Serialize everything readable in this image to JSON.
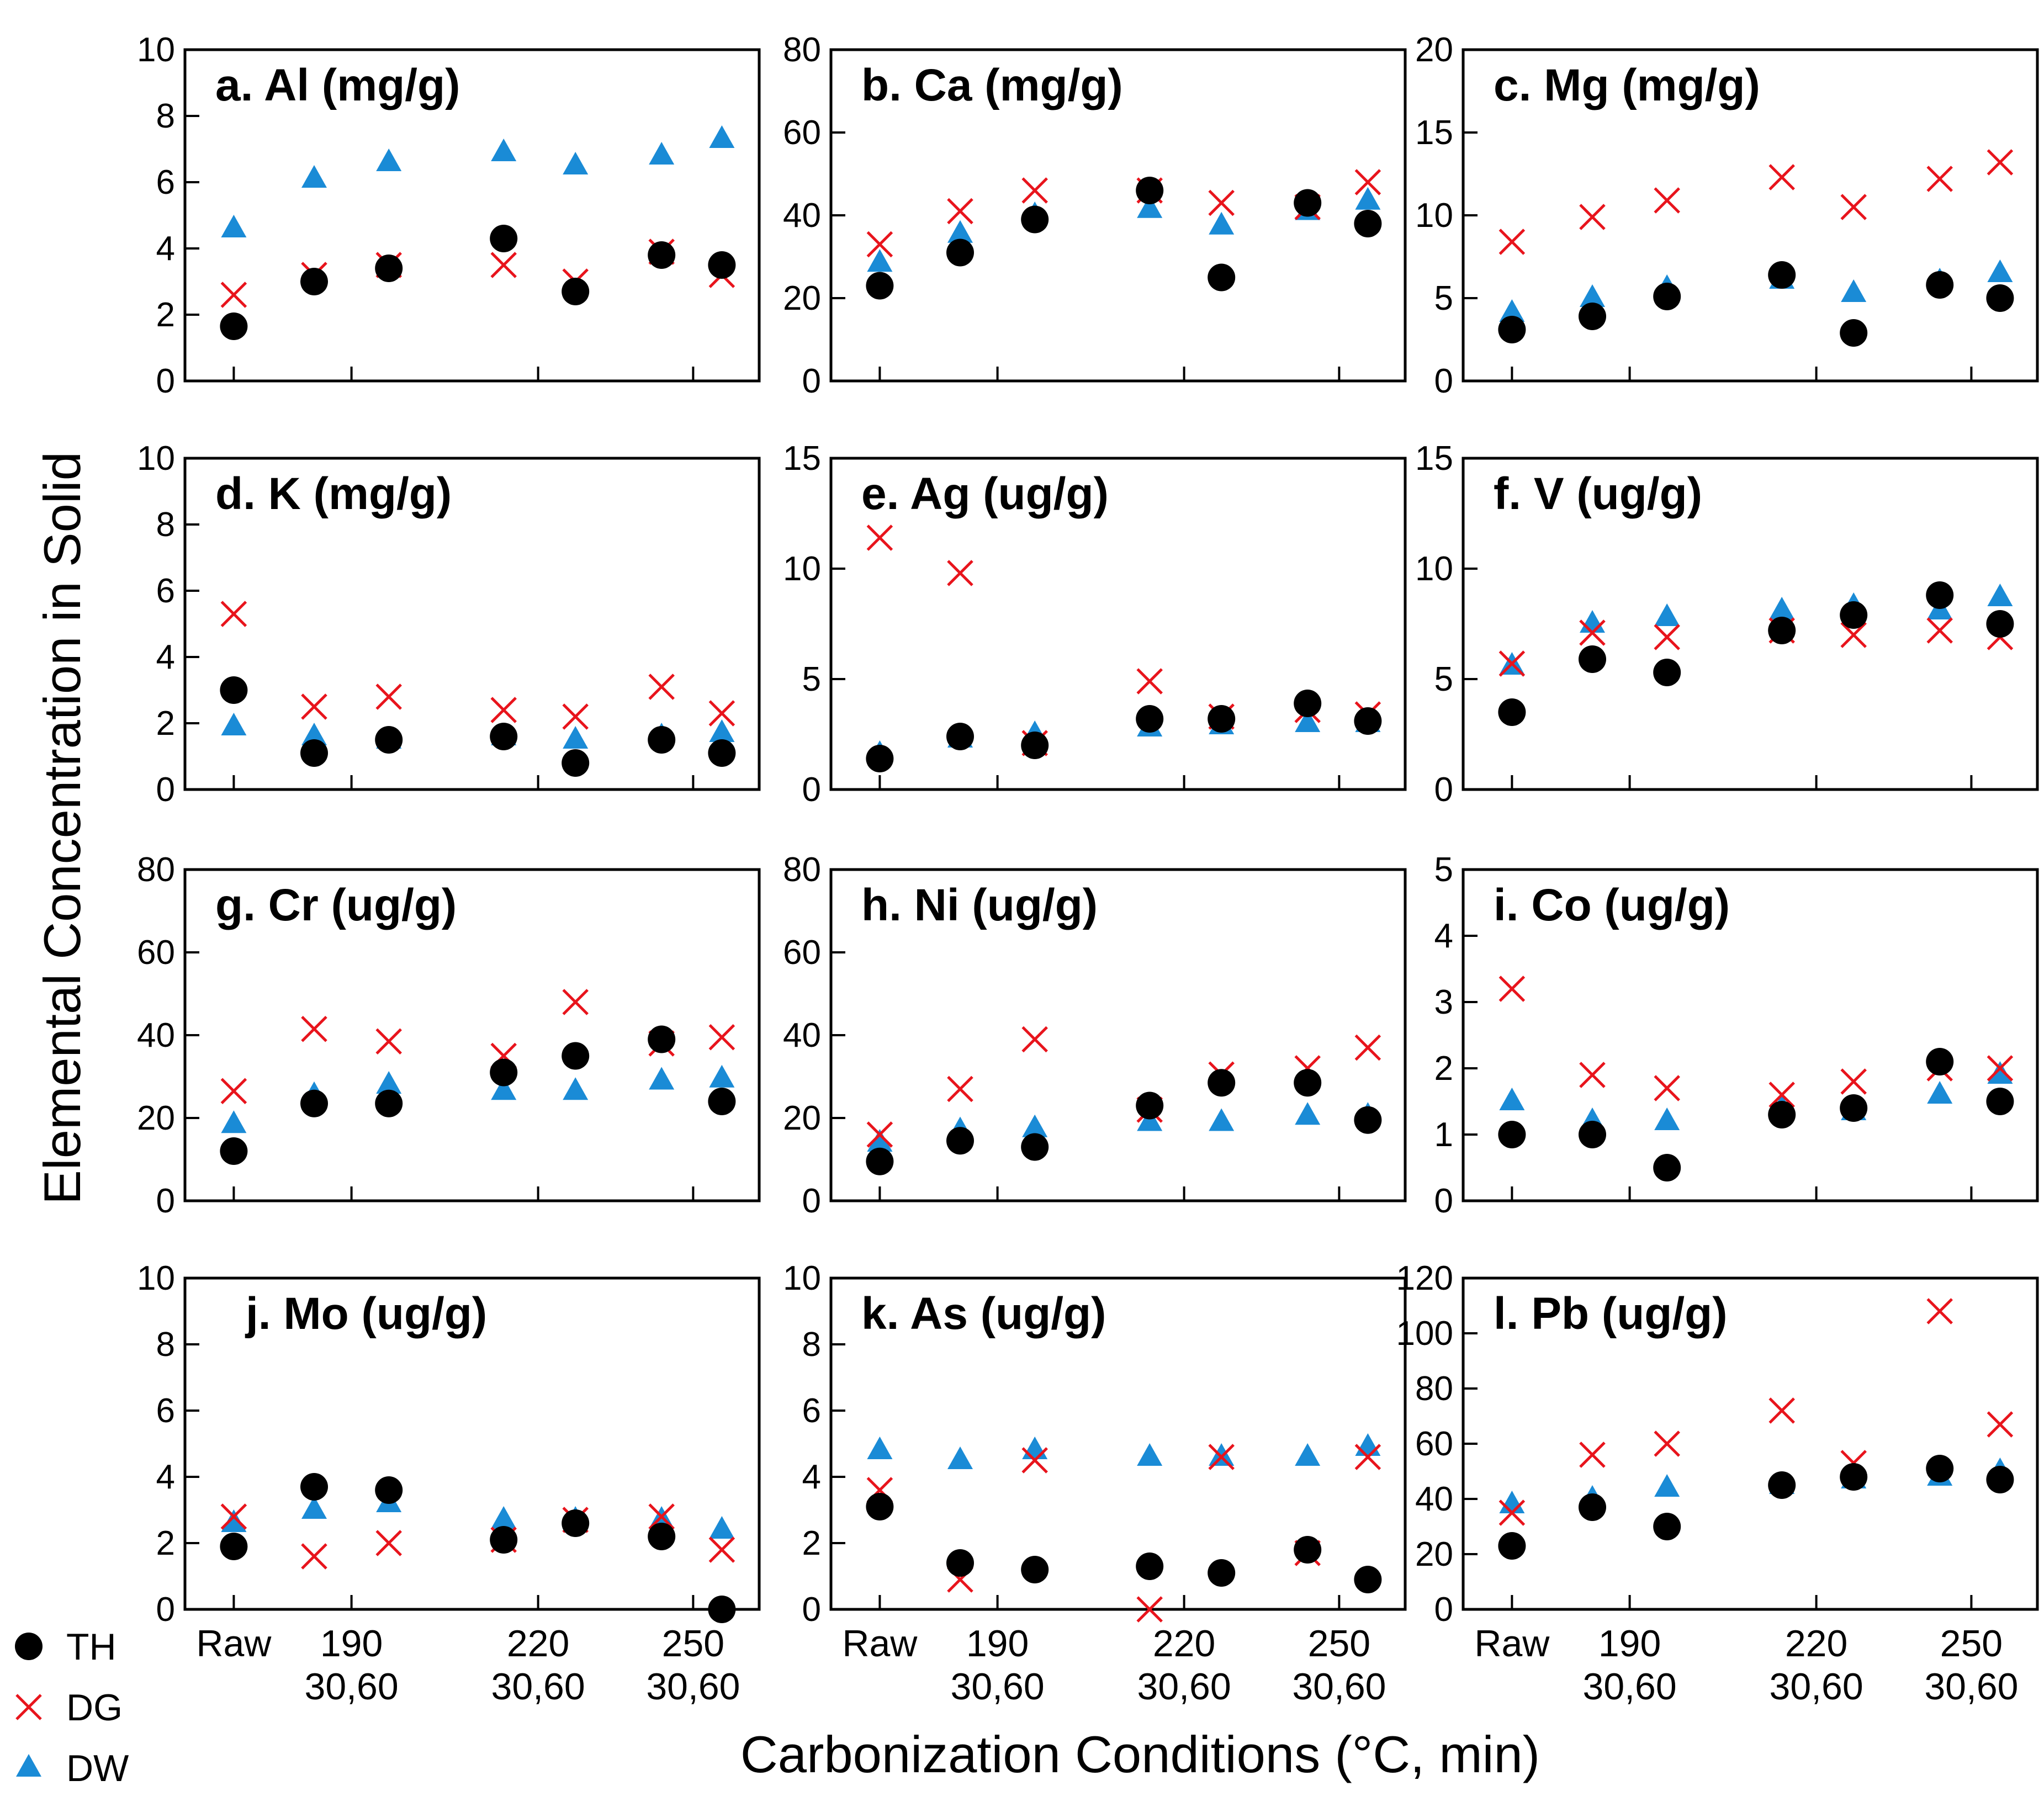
{
  "figure": {
    "ylabel": "Elemental Concentration in Solid",
    "xlabel": "Carbonization Conditions (°C, min)",
    "colors": {
      "TH": "#000000",
      "DG": "#e8141c",
      "DW": "#1a8bd6"
    }
  },
  "legend": [
    {
      "series": "TH",
      "label": "TH"
    },
    {
      "series": "DG",
      "label": "DG"
    },
    {
      "series": "DW",
      "label": "DW"
    }
  ],
  "xaxis": {
    "categories": [
      {
        "line1": "Raw",
        "line2": ""
      },
      {
        "line1": "190",
        "line2": "30,60"
      },
      {
        "line1": "220",
        "line2": "30,60"
      },
      {
        "line1": "250",
        "line2": "30,60"
      }
    ]
  },
  "chart_data": [
    {
      "type": "scatter",
      "title": "a. Al (mg/g)",
      "ylim": [
        0,
        10
      ],
      "yticks": [
        0,
        2,
        4,
        6,
        8,
        10
      ],
      "series": [
        {
          "name": "TH",
          "values": [
            1.65,
            3.0,
            3.4,
            4.3,
            2.7,
            3.8,
            3.5
          ]
        },
        {
          "name": "DG",
          "values": [
            2.6,
            3.2,
            3.5,
            3.5,
            3.0,
            3.9,
            3.2
          ]
        },
        {
          "name": "DW",
          "values": [
            4.6,
            6.1,
            6.6,
            6.9,
            6.5,
            6.8,
            7.3
          ]
        }
      ]
    },
    {
      "type": "scatter",
      "title": "b. Ca (mg/g)",
      "ylim": [
        0,
        80
      ],
      "yticks": [
        0,
        20,
        40,
        60,
        80
      ],
      "series": [
        {
          "name": "TH",
          "values": [
            23,
            31,
            39,
            46,
            25,
            43,
            38
          ]
        },
        {
          "name": "DG",
          "values": [
            33,
            41,
            46,
            46,
            43,
            42,
            48
          ]
        },
        {
          "name": "DW",
          "values": [
            28.5,
            35.5,
            40,
            41.5,
            37.5,
            41,
            43.5
          ]
        }
      ]
    },
    {
      "type": "scatter",
      "title": "c. Mg (mg/g)",
      "ylim": [
        0,
        20
      ],
      "yticks": [
        0,
        5,
        10,
        15,
        20
      ],
      "series": [
        {
          "name": "TH",
          "values": [
            3.1,
            3.9,
            5.1,
            6.4,
            2.9,
            5.8,
            5.0
          ]
        },
        {
          "name": "DG",
          "values": [
            8.4,
            9.9,
            10.9,
            12.3,
            10.5,
            12.2,
            13.2
          ]
        },
        {
          "name": "DW",
          "values": [
            4.1,
            5.0,
            5.6,
            6.1,
            5.3,
            6.0,
            6.5
          ]
        }
      ]
    },
    {
      "type": "scatter",
      "title": "d. K (mg/g)",
      "ylim": [
        0,
        10
      ],
      "yticks": [
        0,
        2,
        4,
        6,
        8,
        10
      ],
      "series": [
        {
          "name": "TH",
          "values": [
            3.0,
            1.1,
            1.5,
            1.6,
            0.8,
            1.5,
            1.1
          ]
        },
        {
          "name": "DG",
          "values": [
            5.3,
            2.5,
            2.8,
            2.4,
            2.2,
            3.1,
            2.3
          ]
        },
        {
          "name": "DW",
          "values": [
            1.9,
            1.6,
            1.5,
            1.6,
            1.5,
            1.6,
            1.7
          ]
        }
      ]
    },
    {
      "type": "scatter",
      "title": "e. Ag (ug/g)",
      "ylim": [
        0,
        15
      ],
      "yticks": [
        0,
        5,
        10,
        15
      ],
      "series": [
        {
          "name": "TH",
          "values": [
            1.4,
            2.4,
            2.0,
            3.2,
            3.2,
            3.9,
            3.1
          ]
        },
        {
          "name": "DG",
          "values": [
            11.4,
            9.8,
            2.1,
            4.9,
            3.3,
            3.6,
            3.4
          ]
        },
        {
          "name": "DW",
          "values": [
            1.6,
            2.3,
            2.5,
            2.8,
            2.9,
            3.0,
            3.0
          ]
        }
      ]
    },
    {
      "type": "scatter",
      "title": "f. V (ug/g)",
      "ylim": [
        0,
        15
      ],
      "yticks": [
        0,
        5,
        10,
        15
      ],
      "series": [
        {
          "name": "TH",
          "values": [
            3.5,
            5.9,
            5.3,
            7.2,
            7.9,
            8.8,
            7.5
          ]
        },
        {
          "name": "DG",
          "values": [
            5.7,
            7.1,
            6.9,
            7.2,
            7.0,
            7.2,
            6.9
          ]
        },
        {
          "name": "DW",
          "values": [
            5.6,
            7.5,
            7.8,
            8.1,
            8.3,
            8.1,
            8.7
          ]
        }
      ]
    },
    {
      "type": "scatter",
      "title": "g. Cr (ug/g)",
      "ylim": [
        0,
        80
      ],
      "yticks": [
        0,
        20,
        40,
        60,
        80
      ],
      "series": [
        {
          "name": "TH",
          "values": [
            12,
            23.5,
            23.5,
            31,
            35,
            39,
            24
          ]
        },
        {
          "name": "DG",
          "values": [
            26.5,
            41.5,
            38.5,
            35,
            48,
            38,
            39.5
          ]
        },
        {
          "name": "DW",
          "values": [
            18.5,
            25.5,
            28,
            26.5,
            26.5,
            29,
            29.5
          ]
        }
      ]
    },
    {
      "type": "scatter",
      "title": "h. Ni (ug/g)",
      "ylim": [
        0,
        80
      ],
      "yticks": [
        0,
        20,
        40,
        60,
        80
      ],
      "series": [
        {
          "name": "TH",
          "values": [
            9.5,
            14.5,
            13,
            23,
            28.5,
            28.5,
            19.5
          ]
        },
        {
          "name": "DG",
          "values": [
            16,
            27,
            39,
            22,
            30.5,
            32,
            37
          ]
        },
        {
          "name": "DW",
          "values": [
            14,
            17,
            17.5,
            19,
            19,
            20.5,
            20.5
          ]
        }
      ]
    },
    {
      "type": "scatter",
      "title": "i. Co (ug/g)",
      "ylim": [
        0,
        5
      ],
      "yticks": [
        0,
        1,
        2,
        3,
        4,
        5
      ],
      "series": [
        {
          "name": "TH",
          "values": [
            1.0,
            1.0,
            0.5,
            1.3,
            1.4,
            2.1,
            1.5
          ]
        },
        {
          "name": "DG",
          "values": [
            3.2,
            1.9,
            1.7,
            1.6,
            1.8,
            2.0,
            2.0
          ]
        },
        {
          "name": "DW",
          "values": [
            1.5,
            1.2,
            1.2,
            1.4,
            1.35,
            1.6,
            1.9
          ]
        }
      ]
    },
    {
      "type": "scatter",
      "title": "j. Mo (ug/g)",
      "ylim": [
        0,
        10
      ],
      "yticks": [
        0,
        2,
        4,
        6,
        8,
        10
      ],
      "series": [
        {
          "name": "TH",
          "values": [
            1.9,
            3.7,
            3.6,
            2.1,
            2.6,
            2.2,
            0.0
          ]
        },
        {
          "name": "DG",
          "values": [
            2.8,
            1.6,
            2.0,
            2.1,
            2.7,
            2.8,
            1.8
          ]
        },
        {
          "name": "DW",
          "values": [
            2.6,
            3.0,
            3.2,
            2.7,
            2.7,
            2.7,
            2.4
          ]
        }
      ]
    },
    {
      "type": "scatter",
      "title": "k. As (ug/g)",
      "ylim": [
        0,
        10
      ],
      "yticks": [
        0,
        2,
        4,
        6,
        8,
        10
      ],
      "series": [
        {
          "name": "TH",
          "values": [
            3.1,
            1.4,
            1.2,
            1.3,
            1.1,
            1.8,
            0.9
          ]
        },
        {
          "name": "DG",
          "values": [
            3.6,
            0.9,
            4.5,
            0.0,
            4.6,
            1.7,
            4.6
          ]
        },
        {
          "name": "DW",
          "values": [
            4.8,
            4.5,
            4.8,
            4.6,
            4.6,
            4.6,
            4.9
          ]
        }
      ]
    },
    {
      "type": "scatter",
      "title": "l. Pb (ug/g)",
      "ylim": [
        0,
        120
      ],
      "yticks": [
        0,
        20,
        40,
        60,
        80,
        100,
        120
      ],
      "series": [
        {
          "name": "TH",
          "values": [
            23,
            37,
            30,
            45,
            48,
            51,
            47
          ]
        },
        {
          "name": "DG",
          "values": [
            35,
            56,
            60,
            72,
            53,
            108,
            67
          ]
        },
        {
          "name": "DW",
          "values": [
            38,
            40,
            44,
            45,
            47,
            48,
            50
          ]
        }
      ]
    }
  ]
}
